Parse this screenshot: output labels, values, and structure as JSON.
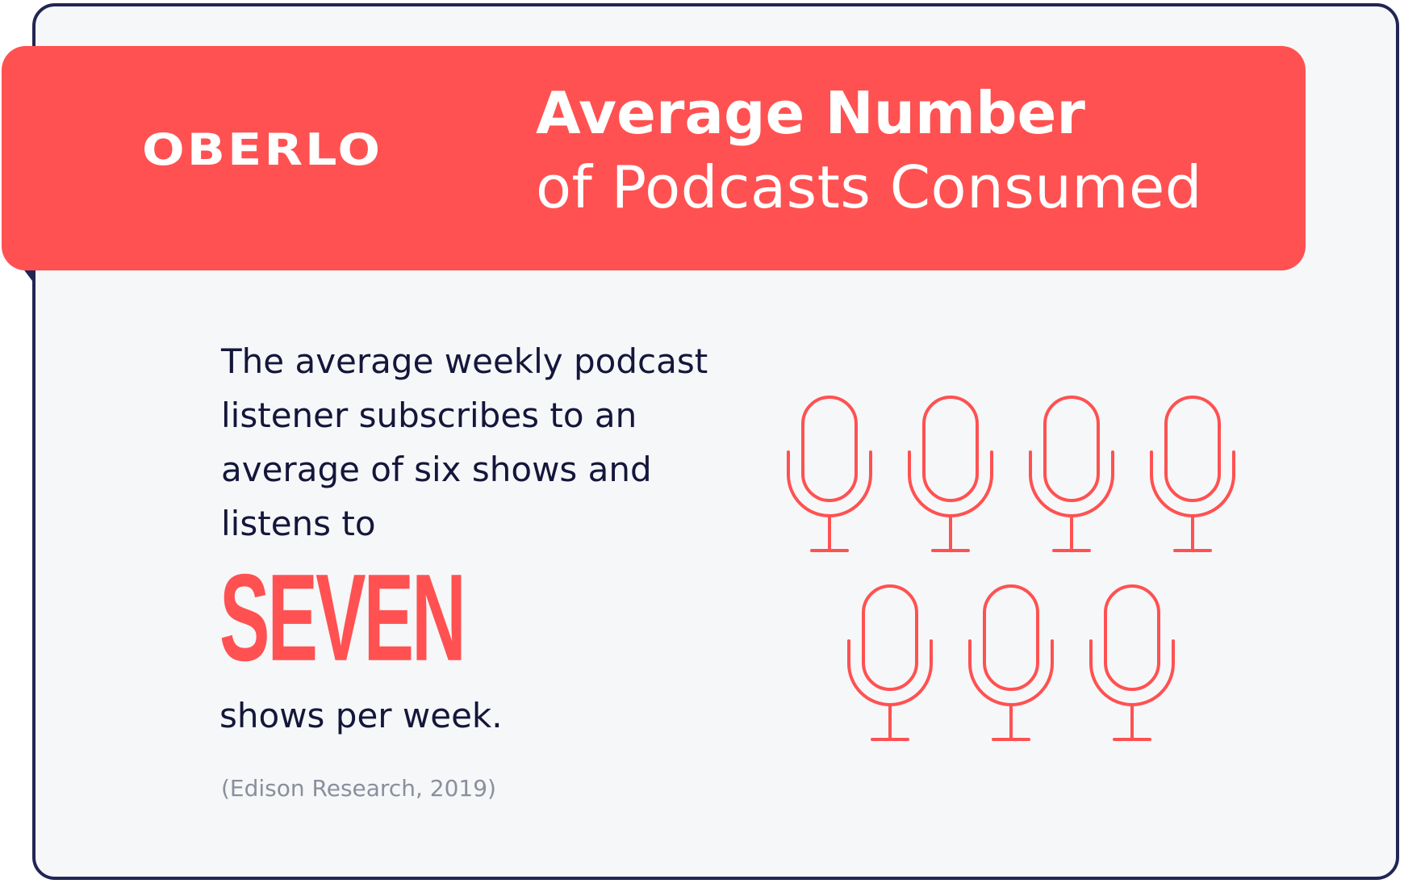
{
  "brand": {
    "logo_text": "OBERLO"
  },
  "title": {
    "line1": "Average Number",
    "line2": "of Podcasts Consumed"
  },
  "stat": {
    "body": "The average weekly podcast listener subscribes to an average of six shows and listens to",
    "highlight": "SEVEN",
    "suffix": "shows per week.",
    "source": "(Edison Research, 2019)"
  },
  "illustration": {
    "icon": "microphone-icon",
    "count": 7,
    "per_row": [
      4,
      3
    ]
  },
  "colors": {
    "accent": "#ff5151",
    "text": "#14163a",
    "border": "#222554",
    "background": "#f6f7f9",
    "muted": "#8a8f9c"
  }
}
